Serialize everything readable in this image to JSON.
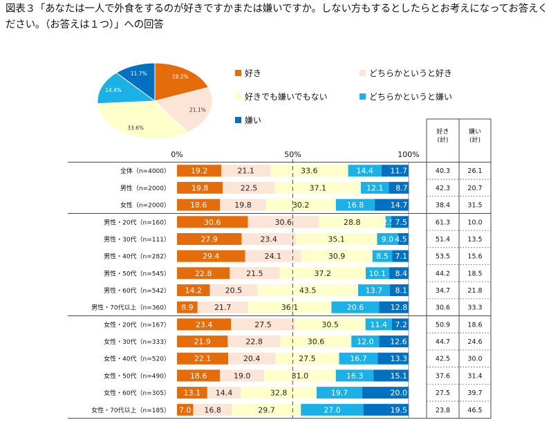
{
  "title": "図表３「あなたは一人で外食をするのが好きですかまたは嫌いですか。しない方もするとしたらとお考えになってお答えください。（お答えは１つ）」への回答",
  "colors": {
    "like": "#E46C0A",
    "somewhat_like": "#FCE4D6",
    "neither": "#FFFFCC",
    "somewhat_dislike": "#1CB1E6",
    "dislike": "#0070C0"
  },
  "chart_data": [
    {
      "type": "pie",
      "title": "",
      "categories": [
        "好き",
        "どちらかというと好き",
        "好きでも嫌いでもない",
        "どちらかというと嫌い",
        "嫌い"
      ],
      "values": [
        19.2,
        21.1,
        33.6,
        14.4,
        11.7
      ],
      "labels": [
        "19.2%",
        "21.1%",
        "33.6%",
        "14.4%",
        "11.7%"
      ]
    },
    {
      "type": "bar",
      "orientation": "horizontal-stacked-100",
      "axis_labels": [
        "0%",
        "50%",
        "100%"
      ],
      "xlim": [
        0,
        100
      ],
      "series_names": [
        "好き",
        "どちらかというと好き",
        "好きでも嫌いでもない",
        "どちらかというと嫌い",
        "嫌い"
      ],
      "sum_headers": [
        "好き\n(計)",
        "嫌い\n(計)"
      ],
      "groups": [
        {
          "rows": [
            {
              "label": "全体（n=4000）",
              "values": [
                19.2,
                21.1,
                33.6,
                14.4,
                11.7
              ],
              "like_total": "40.3",
              "dislike_total": "26.1"
            },
            {
              "label": "男性（n=2000）",
              "values": [
                19.8,
                22.5,
                37.1,
                12.1,
                8.7
              ],
              "like_total": "42.3",
              "dislike_total": "20.7"
            },
            {
              "label": "女性（n=2000）",
              "values": [
                18.6,
                19.8,
                30.2,
                16.8,
                14.7
              ],
              "like_total": "38.4",
              "dislike_total": "31.5"
            }
          ]
        },
        {
          "rows": [
            {
              "label": "男性・20代（n=160）",
              "values": [
                30.6,
                30.6,
                28.8,
                2.5,
                7.5
              ],
              "like_total": "61.3",
              "dislike_total": "10.0"
            },
            {
              "label": "男性・30代（n=111）",
              "values": [
                27.9,
                23.4,
                35.1,
                9.0,
                4.5
              ],
              "like_total": "51.4",
              "dislike_total": "13.5"
            },
            {
              "label": "男性・40代（n=282）",
              "values": [
                29.4,
                24.1,
                30.9,
                8.5,
                7.1
              ],
              "like_total": "53.5",
              "dislike_total": "15.6"
            },
            {
              "label": "男性・50代（n=545）",
              "values": [
                22.8,
                21.5,
                37.2,
                10.1,
                8.4
              ],
              "like_total": "44.2",
              "dislike_total": "18.5"
            },
            {
              "label": "男性・60代（n=542）",
              "values": [
                14.2,
                20.5,
                43.5,
                13.7,
                8.1
              ],
              "like_total": "34.7",
              "dislike_total": "21.8"
            },
            {
              "label": "男性・70代以上（n=360）",
              "values": [
                8.9,
                21.7,
                36.1,
                20.6,
                12.8
              ],
              "like_total": "30.6",
              "dislike_total": "33.3"
            }
          ]
        },
        {
          "rows": [
            {
              "label": "女性・20代（n=167）",
              "values": [
                23.4,
                27.5,
                30.5,
                11.4,
                7.2
              ],
              "like_total": "50.9",
              "dislike_total": "18.6"
            },
            {
              "label": "女性・30代（n=333）",
              "values": [
                21.9,
                22.8,
                30.6,
                12.0,
                12.6
              ],
              "like_total": "44.7",
              "dislike_total": "24.6"
            },
            {
              "label": "女性・40代（n=520）",
              "values": [
                22.1,
                20.4,
                27.5,
                16.7,
                13.3
              ],
              "like_total": "42.5",
              "dislike_total": "30.0"
            },
            {
              "label": "女性・50代（n=490）",
              "values": [
                18.6,
                19.0,
                31.0,
                16.3,
                15.1
              ],
              "like_total": "37.6",
              "dislike_total": "31.4"
            },
            {
              "label": "女性・60代（n=305）",
              "values": [
                13.1,
                14.4,
                32.8,
                19.7,
                20.0
              ],
              "like_total": "27.5",
              "dislike_total": "39.7"
            },
            {
              "label": "女性・70代以上（n=185）",
              "values": [
                7.0,
                16.8,
                29.7,
                27.0,
                19.5
              ],
              "like_total": "23.8",
              "dislike_total": "46.5"
            }
          ]
        }
      ]
    }
  ]
}
